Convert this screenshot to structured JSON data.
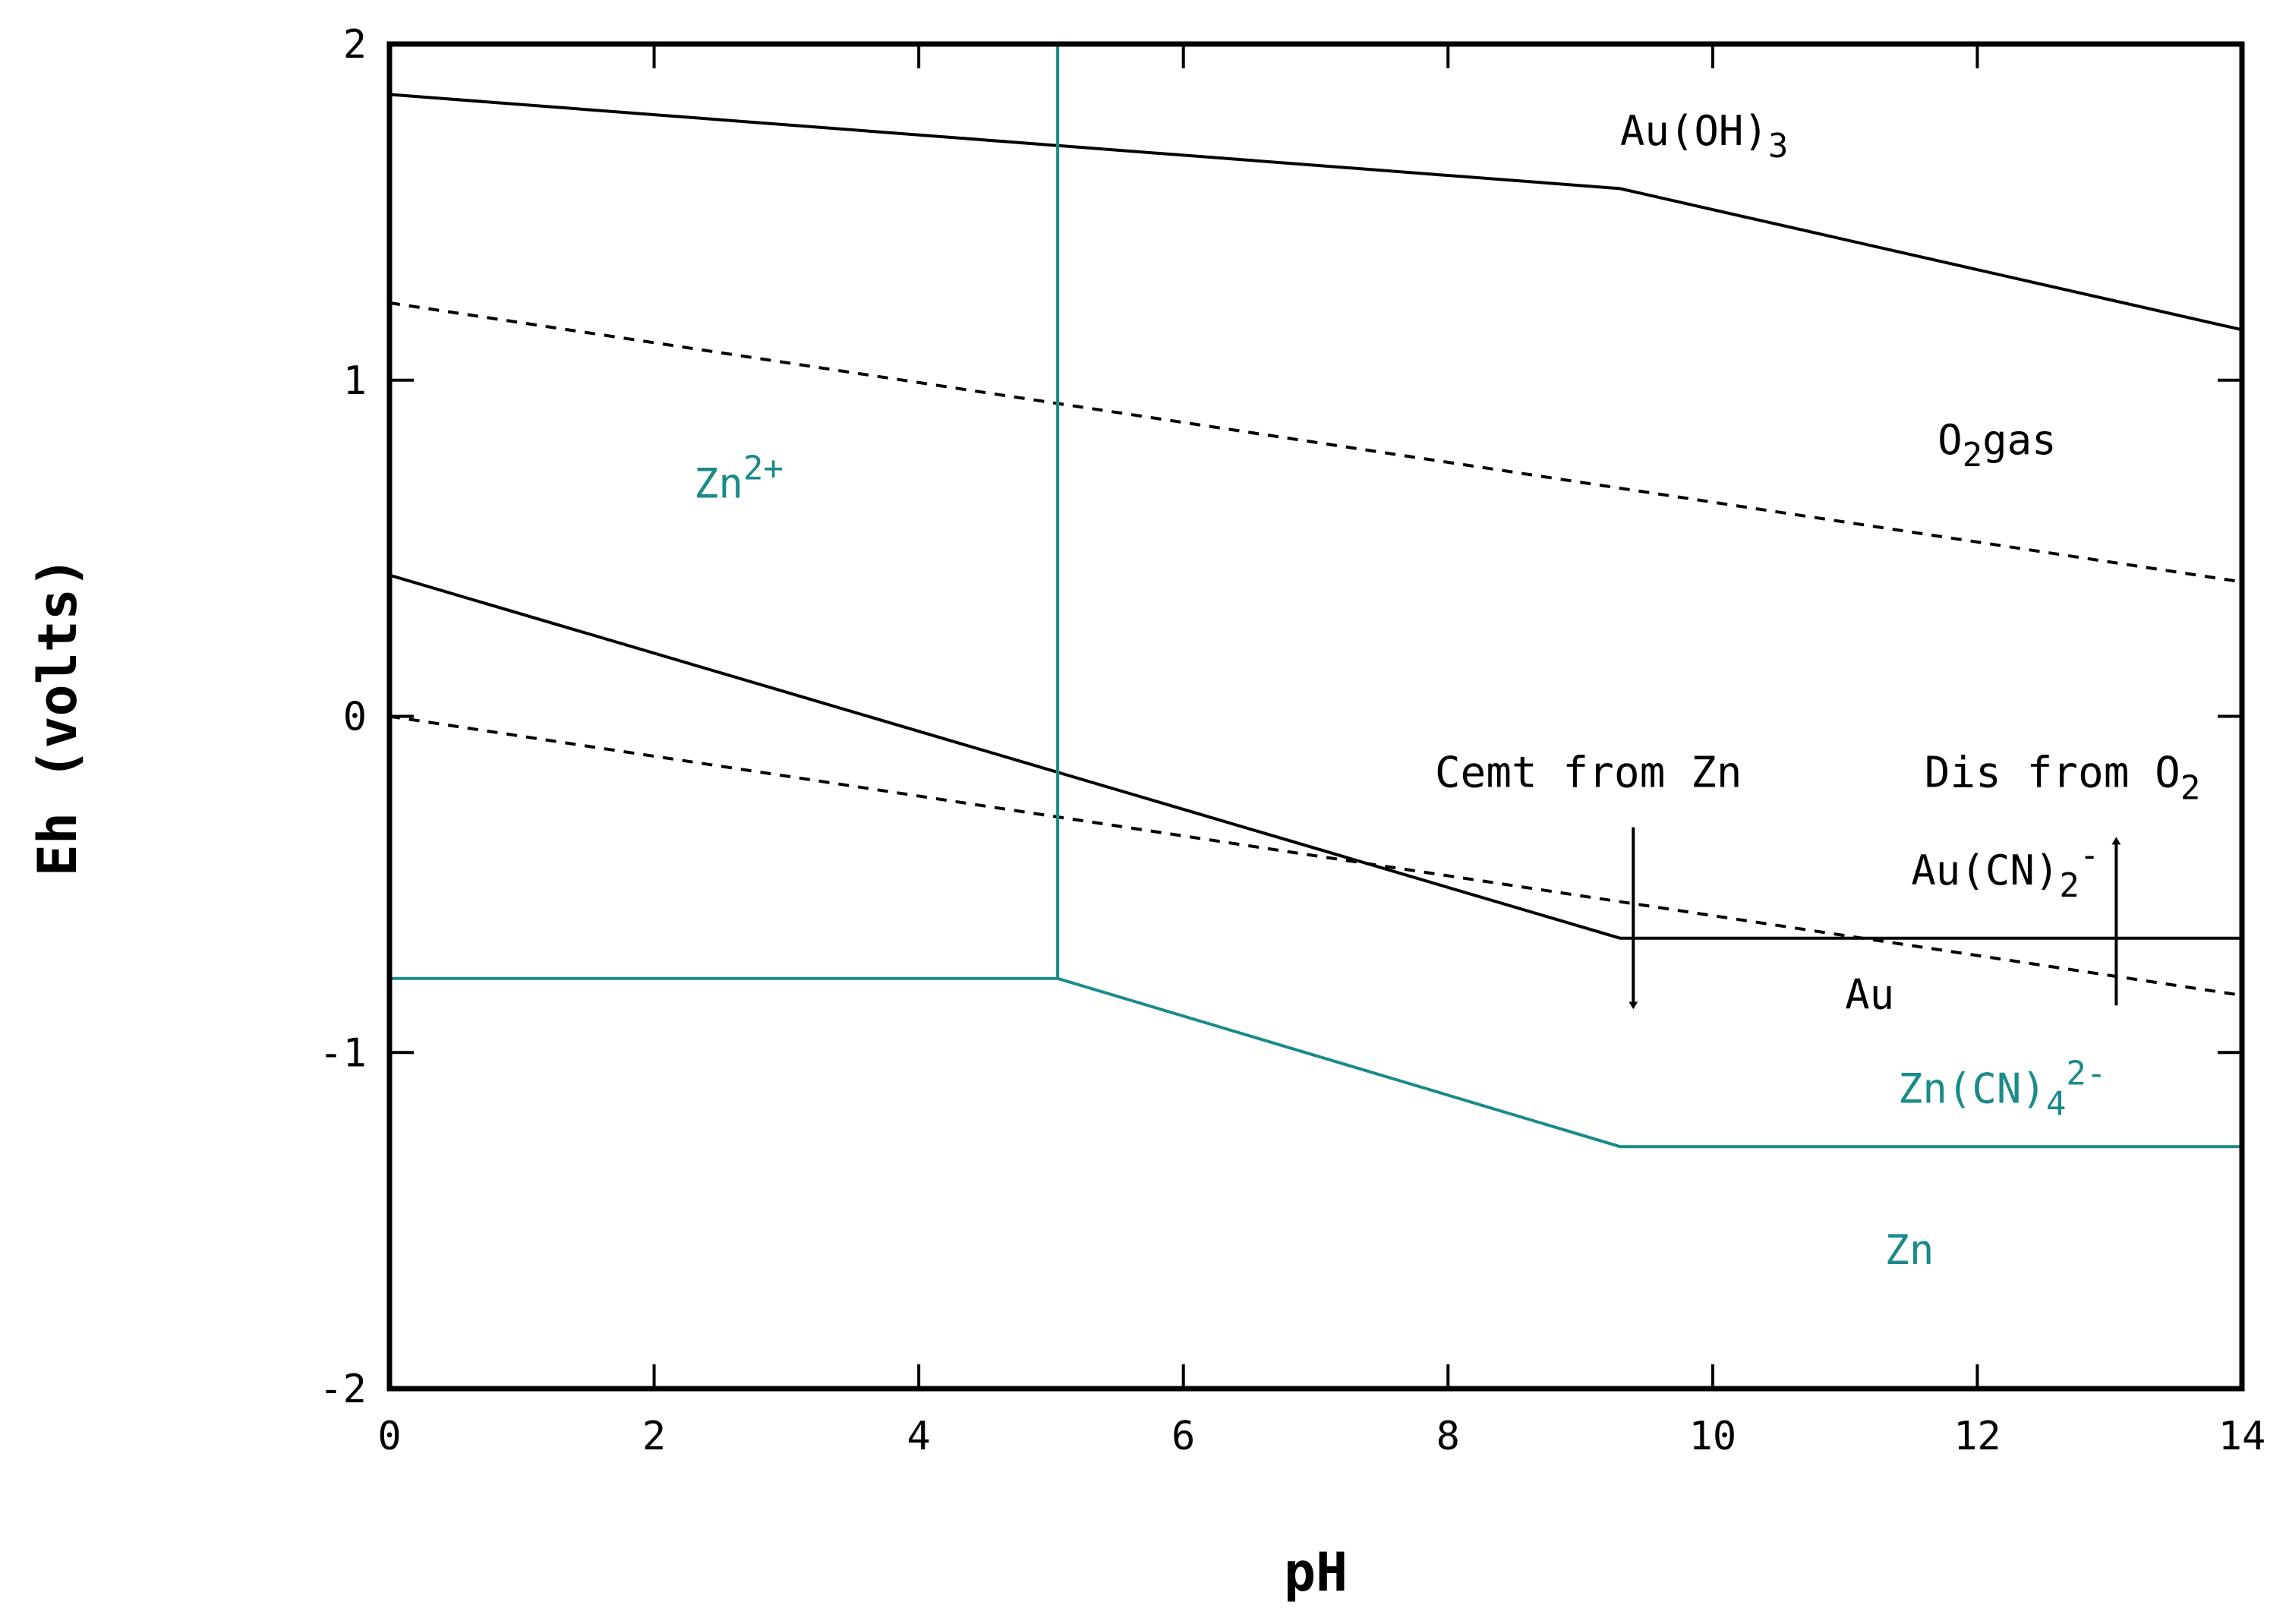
{
  "chart_data": {
    "type": "line",
    "title": "",
    "xlabel": "pH",
    "ylabel": "Eh (volts)",
    "xlim": [
      0,
      14
    ],
    "ylim": [
      -2,
      2
    ],
    "x_ticks": [
      "0",
      "2",
      "4",
      "6",
      "8",
      "10",
      "12",
      "14"
    ],
    "y_ticks": [
      "2",
      "1",
      "0",
      "-1",
      "-2"
    ],
    "grid": false,
    "series": [
      {
        "style": "solid",
        "color": "#000000",
        "points": [
          [
            0,
            1.85
          ],
          [
            9.3,
            1.57
          ],
          [
            14,
            1.15
          ]
        ]
      },
      {
        "style": "solid",
        "color": "#000000",
        "points": [
          [
            0,
            0.42
          ],
          [
            9.3,
            -0.66
          ],
          [
            14,
            -0.66
          ]
        ]
      },
      {
        "style": "dashed",
        "color": "#000000",
        "points": [
          [
            0,
            1.23
          ],
          [
            14,
            0.4
          ]
        ]
      },
      {
        "style": "dashed",
        "color": "#000000",
        "points": [
          [
            0,
            0.0
          ],
          [
            14,
            -0.83
          ]
        ]
      },
      {
        "style": "solid",
        "color": "#1a8a8a",
        "points": [
          [
            5.05,
            2.0
          ],
          [
            5.05,
            -0.78
          ]
        ]
      },
      {
        "style": "solid",
        "color": "#1a8a8a",
        "points": [
          [
            0,
            -0.78
          ],
          [
            5.05,
            -0.78
          ],
          [
            9.3,
            -1.28
          ],
          [
            14,
            -1.28
          ]
        ]
      }
    ],
    "region_labels": [
      {
        "base": "Au(OH)",
        "sub": "3",
        "sup": "",
        "tail": "",
        "x": 9.3,
        "y": 1.7,
        "color": "#000000"
      },
      {
        "base": "O",
        "sub": "2",
        "sup": "",
        "tail": "gas",
        "x": 11.7,
        "y": 0.78,
        "color": "#000000"
      },
      {
        "base": "Zn",
        "sub": "",
        "sup": "2+",
        "tail": "",
        "x": 2.3,
        "y": 0.65,
        "color": "#1a8a8a"
      },
      {
        "base": "Au(CN)",
        "sub": "2",
        "sup": "-",
        "tail": "",
        "x": 11.5,
        "y": -0.5,
        "color": "#000000"
      },
      {
        "base": "Au",
        "sub": "",
        "sup": "",
        "tail": "",
        "x": 11.0,
        "y": -0.87,
        "color": "#000000"
      },
      {
        "base": "Zn(CN)",
        "sub": "4",
        "sup": "2-",
        "tail": "",
        "x": 11.4,
        "y": -1.15,
        "color": "#1a8a8a"
      },
      {
        "base": "Zn",
        "sub": "",
        "sup": "",
        "tail": "",
        "x": 11.3,
        "y": -1.63,
        "color": "#1a8a8a"
      }
    ],
    "annotations": [
      {
        "base": "Cemt from Zn",
        "sub": "",
        "x": 7.9,
        "y": -0.21
      },
      {
        "base": "Dis from O",
        "sub": "2",
        "x": 11.6,
        "y": -0.21
      }
    ],
    "arrows": [
      {
        "x": 9.4,
        "y_from": -0.33,
        "y_to": -0.86,
        "direction": "down"
      },
      {
        "x": 13.05,
        "y_from": -0.86,
        "y_to": -0.37,
        "direction": "up"
      }
    ]
  }
}
